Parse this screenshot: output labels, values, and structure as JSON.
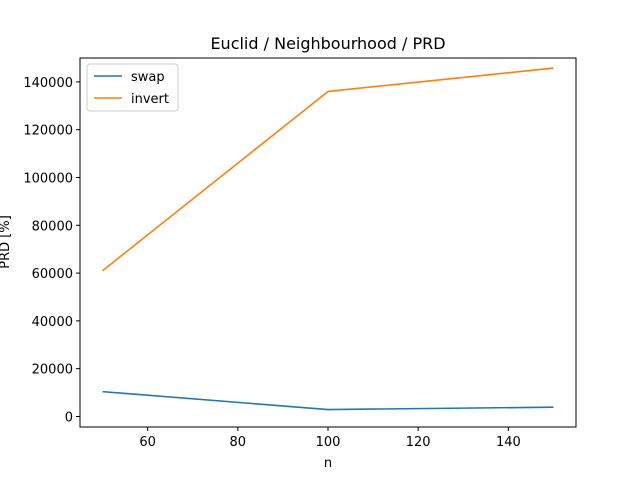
{
  "chart_data": {
    "type": "line",
    "title": "Euclid / Neighbourhood / PRD",
    "xlabel": "n",
    "ylabel": "PRD [%]",
    "xlim": [
      45,
      155
    ],
    "ylim": [
      -4400,
      150000
    ],
    "x": [
      50,
      100,
      150
    ],
    "xticks": [
      60,
      80,
      100,
      120,
      140
    ],
    "yticks": [
      0,
      20000,
      40000,
      60000,
      80000,
      100000,
      120000,
      140000
    ],
    "series": [
      {
        "name": "swap",
        "color": "#1f77b4",
        "values": [
          10400,
          2900,
          3900
        ]
      },
      {
        "name": "invert",
        "color": "#ff7f0e",
        "values": [
          61000,
          136000,
          145800
        ]
      }
    ],
    "legend": {
      "position": "top-left"
    },
    "grid": false
  }
}
